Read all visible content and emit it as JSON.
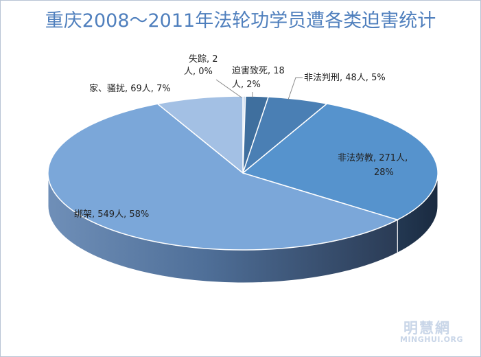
{
  "chart_data": {
    "type": "pie",
    "title": "重庆2008～2011年法轮功学员遭各类迫害统计",
    "slices": [
      {
        "name": "失踪",
        "count": 2,
        "percent": 0,
        "label_line1": "失踪, 2",
        "label_line2": "人, 0%",
        "color": "#c4d6ee"
      },
      {
        "name": "迫害致死",
        "count": 18,
        "percent": 2,
        "label_line1": "迫害致死, 18",
        "label_line2": "人, 2%",
        "color": "#3f6f9e"
      },
      {
        "name": "非法判刑",
        "count": 48,
        "percent": 5,
        "label_line1": "非法判刑, 48人, 5%",
        "label_line2": "",
        "color": "#4a7fb4"
      },
      {
        "name": "非法劳教",
        "count": 271,
        "percent": 28,
        "label_line1": "非法劳教, 271人,",
        "label_line2": "28%",
        "color": "#5693cd"
      },
      {
        "name": "绑架",
        "count": 549,
        "percent": 58,
        "label_line1": "绑架, 549人, 58%",
        "label_line2": "",
        "color": "#7ba7d9"
      },
      {
        "name": "家、骚扰",
        "count": 69,
        "percent": 7,
        "label_line1": "家、骚扰, 69人, 7%",
        "label_line2": "",
        "color": "#a3c0e4"
      }
    ]
  },
  "watermark": {
    "cn": "明慧網",
    "en": "MINGHUI.ORG"
  }
}
